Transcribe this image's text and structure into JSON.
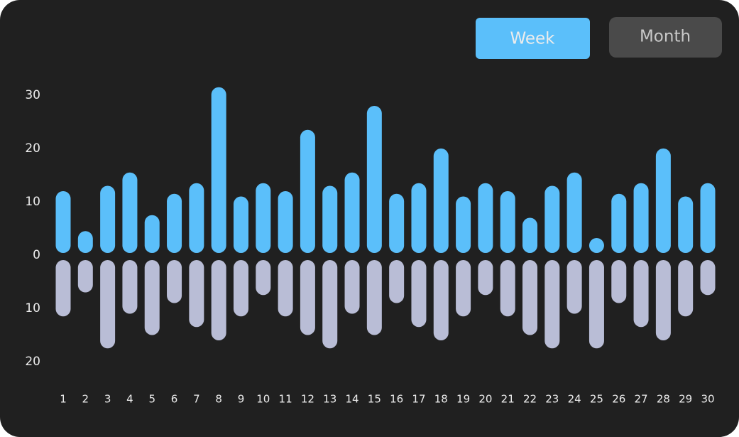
{
  "controls": {
    "week": "Week",
    "month": "Month"
  },
  "chart_data": {
    "type": "diverging-bar",
    "categories": [
      "1",
      "2",
      "3",
      "4",
      "5",
      "6",
      "7",
      "8",
      "9",
      "10",
      "11",
      "12",
      "13",
      "14",
      "15",
      "16",
      "17",
      "18",
      "19",
      "20",
      "21",
      "22",
      "23",
      "24",
      "25",
      "26",
      "27",
      "28",
      "29",
      "30"
    ],
    "series": [
      {
        "color": "#5bbffa",
        "values": [
          12,
          4.5,
          13,
          15.5,
          7.5,
          11.5,
          13.5,
          31.5,
          11,
          13.5,
          12,
          23.5,
          13,
          15.5,
          28,
          11.5,
          13.5,
          20,
          11,
          13.5,
          12,
          7,
          13,
          15.5,
          3,
          11.5,
          13.5,
          20,
          11,
          13.5
        ]
      },
      {
        "color": "#b9bdd6",
        "values": [
          -11.5,
          -7,
          -17.5,
          -11,
          -15,
          -9,
          -13.5,
          -16,
          -11.5,
          -7.5,
          -11.5,
          -15,
          -17.5,
          -11,
          -15,
          -9,
          -13.5,
          -16,
          -11.5,
          -7.5,
          -11.5,
          -15,
          -17.5,
          -11,
          -17.5,
          -9,
          -13.5,
          -16,
          -11.5,
          -7.5
        ]
      }
    ],
    "ylim": [
      -21,
      33
    ],
    "yticks": [
      30,
      20,
      10,
      0,
      {
        "value": -10,
        "label": "10"
      },
      {
        "value": -20,
        "label": "20"
      }
    ]
  }
}
